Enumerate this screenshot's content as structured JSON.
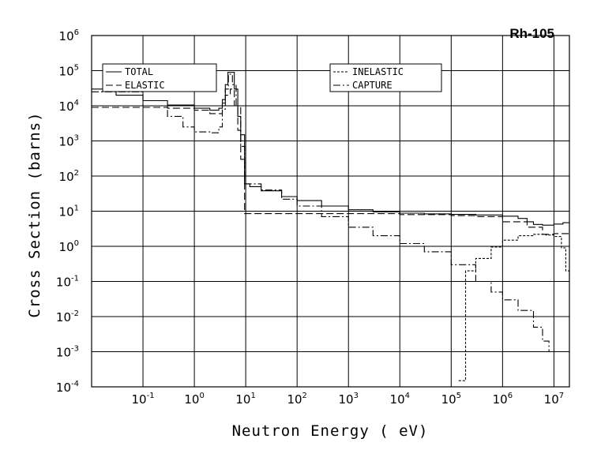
{
  "chart_data": {
    "type": "line",
    "title": "Rh-105",
    "xlabel": "Neutron Energy ( eV)",
    "ylabel": "Cross Section (barns)",
    "x_scale": "log",
    "y_scale": "log",
    "xlim": [
      0.01,
      20000000
    ],
    "ylim": [
      0.0001,
      1000000
    ],
    "grid": true,
    "x_ticks": [
      {
        "base": "10",
        "exp": "-1",
        "value": 0.1
      },
      {
        "base": "10",
        "exp": "0",
        "value": 1
      },
      {
        "base": "10",
        "exp": "1",
        "value": 10
      },
      {
        "base": "10",
        "exp": "2",
        "value": 100
      },
      {
        "base": "10",
        "exp": "3",
        "value": 1000
      },
      {
        "base": "10",
        "exp": "4",
        "value": 10000
      },
      {
        "base": "10",
        "exp": "5",
        "value": 100000
      },
      {
        "base": "10",
        "exp": "6",
        "value": 1000000
      },
      {
        "base": "10",
        "exp": "7",
        "value": 10000000
      }
    ],
    "y_ticks": [
      {
        "base": "10",
        "exp": "-4",
        "value": 0.0001
      },
      {
        "base": "10",
        "exp": "-3",
        "value": 0.001
      },
      {
        "base": "10",
        "exp": "-2",
        "value": 0.01
      },
      {
        "base": "10",
        "exp": "-1",
        "value": 0.1
      },
      {
        "base": "10",
        "exp": "0",
        "value": 1
      },
      {
        "base": "10",
        "exp": "1",
        "value": 10
      },
      {
        "base": "10",
        "exp": "2",
        "value": 100
      },
      {
        "base": "10",
        "exp": "3",
        "value": 1000
      },
      {
        "base": "10",
        "exp": "4",
        "value": 10000
      },
      {
        "base": "10",
        "exp": "5",
        "value": 100000
      },
      {
        "base": "10",
        "exp": "6",
        "value": 1000000
      }
    ],
    "legends": [
      {
        "entries": [
          {
            "series": 0,
            "label": "TOTAL"
          },
          {
            "series": 1,
            "label": "ELASTIC"
          }
        ]
      },
      {
        "entries": [
          {
            "series": 2,
            "label": "INELASTIC"
          },
          {
            "series": 3,
            "label": "CAPTURE"
          }
        ]
      }
    ],
    "series": [
      {
        "name": "TOTAL",
        "style": "solid",
        "step": true,
        "points": [
          [
            0.01,
            30000
          ],
          [
            0.03,
            20000
          ],
          [
            0.1,
            14000
          ],
          [
            0.3,
            10500
          ],
          [
            1,
            8500
          ],
          [
            2,
            7500
          ],
          [
            3,
            8500
          ],
          [
            3.5,
            15000
          ],
          [
            4,
            40000
          ],
          [
            4.5,
            90000
          ],
          [
            5.2,
            90000
          ],
          [
            6,
            30000
          ],
          [
            7,
            5000
          ],
          [
            8,
            1500
          ],
          [
            9.5,
            60
          ],
          [
            12,
            50
          ],
          [
            20,
            38
          ],
          [
            50,
            26
          ],
          [
            100,
            20
          ],
          [
            300,
            14
          ],
          [
            1000,
            11
          ],
          [
            3000,
            9.6
          ],
          [
            10000,
            8.8
          ],
          [
            30000,
            8.4
          ],
          [
            100000,
            8.1
          ],
          [
            300000,
            7.8
          ],
          [
            1000000,
            7.2
          ],
          [
            2000000,
            6.2
          ],
          [
            3000000,
            5
          ],
          [
            4000000,
            4.2
          ],
          [
            6000000,
            4
          ],
          [
            10000000,
            4.3
          ],
          [
            15000000,
            4.7
          ],
          [
            20000000,
            4.6
          ]
        ]
      },
      {
        "name": "ELASTIC",
        "style": "dashed",
        "step": true,
        "points": [
          [
            0.01,
            9000
          ],
          [
            0.03,
            9000
          ],
          [
            0.1,
            9000
          ],
          [
            0.3,
            8500
          ],
          [
            1,
            7500
          ],
          [
            2,
            6000
          ],
          [
            3,
            6000
          ],
          [
            3.5,
            12000
          ],
          [
            4,
            20000
          ],
          [
            5,
            30000
          ],
          [
            6,
            10000
          ],
          [
            7,
            2000
          ],
          [
            8,
            300
          ],
          [
            9.5,
            8.5
          ],
          [
            100,
            8.5
          ],
          [
            1000,
            8.5
          ],
          [
            10000,
            8
          ],
          [
            100000,
            7.5
          ],
          [
            300000,
            7
          ],
          [
            1000000,
            5
          ],
          [
            3000000,
            3.5
          ],
          [
            6000000,
            2.2
          ],
          [
            10000000,
            2.3
          ],
          [
            20000000,
            3
          ]
        ]
      },
      {
        "name": "INELASTIC",
        "style": "short-dash",
        "step": true,
        "points": [
          [
            140000,
            0.00015
          ],
          [
            190000,
            0.00015
          ],
          [
            190000,
            0.2
          ],
          [
            300000,
            0.45
          ],
          [
            600000,
            0.95
          ],
          [
            1000000,
            1.5
          ],
          [
            2000000,
            2
          ],
          [
            4000000,
            2.2
          ],
          [
            7000000,
            2.1
          ],
          [
            10000000,
            1.9
          ],
          [
            14000000,
            0.9
          ],
          [
            17000000,
            0.2
          ],
          [
            20000000,
            0.1
          ]
        ]
      },
      {
        "name": "CAPTURE",
        "style": "dash-dot",
        "step": true,
        "points": [
          [
            0.01,
            25000
          ],
          [
            0.1,
            10000
          ],
          [
            0.3,
            5000
          ],
          [
            0.6,
            2500
          ],
          [
            1,
            1800
          ],
          [
            2,
            1700
          ],
          [
            3,
            2500
          ],
          [
            3.5,
            8000
          ],
          [
            4,
            30000
          ],
          [
            4.6,
            80000
          ],
          [
            5.5,
            40000
          ],
          [
            6.5,
            10000
          ],
          [
            8,
            700
          ],
          [
            9.5,
            60
          ],
          [
            20,
            40
          ],
          [
            50,
            22
          ],
          [
            100,
            14
          ],
          [
            300,
            7
          ],
          [
            1000,
            3.5
          ],
          [
            3000,
            2
          ],
          [
            10000,
            1.2
          ],
          [
            30000,
            0.7
          ],
          [
            100000,
            0.3
          ],
          [
            300000,
            0.1
          ],
          [
            600000,
            0.05
          ],
          [
            1000000,
            0.03
          ],
          [
            2000000,
            0.015
          ],
          [
            4000000,
            0.005
          ],
          [
            6000000,
            0.002
          ],
          [
            8000000,
            0.001
          ],
          [
            10000000,
            0.001
          ],
          [
            20000000,
            0.0009
          ]
        ]
      }
    ]
  }
}
